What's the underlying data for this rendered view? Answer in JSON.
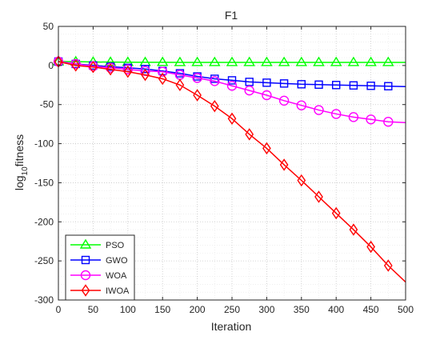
{
  "chart_data": {
    "type": "line",
    "title": "F1",
    "xlabel": "Iteration",
    "ylabel": "fitness",
    "ylabel_prefix": "log",
    "ylabel_subscript": "10",
    "xlim": [
      0,
      500
    ],
    "ylim": [
      -300,
      50
    ],
    "xticks": [
      0,
      50,
      100,
      150,
      200,
      250,
      300,
      350,
      400,
      450,
      500
    ],
    "yticks": [
      50,
      0,
      -50,
      -100,
      -150,
      -200,
      -250,
      -300
    ],
    "grid": true,
    "legend_position": "bottom-left",
    "series": [
      {
        "name": "PSO",
        "color": "#00ff00",
        "marker": "triangle",
        "x": [
          0,
          25,
          50,
          75,
          100,
          125,
          150,
          175,
          200,
          225,
          250,
          275,
          300,
          325,
          350,
          375,
          400,
          425,
          450,
          475,
          500
        ],
        "y": [
          5,
          5,
          4.5,
          4.3,
          4.2,
          4.1,
          4.1,
          4,
          4,
          4,
          4,
          4,
          4,
          4,
          4,
          4,
          4,
          4,
          4,
          4,
          4
        ]
      },
      {
        "name": "GWO",
        "color": "#0000ff",
        "marker": "square",
        "x": [
          0,
          25,
          50,
          75,
          100,
          125,
          150,
          175,
          200,
          225,
          250,
          275,
          300,
          325,
          350,
          375,
          400,
          425,
          450,
          475,
          500
        ],
        "y": [
          5,
          2,
          0,
          -1.5,
          -3,
          -4.5,
          -7,
          -10,
          -14,
          -17,
          -19,
          -21,
          -22,
          -23,
          -24,
          -24.5,
          -25,
          -25.5,
          -26,
          -26.5,
          -27
        ]
      },
      {
        "name": "WOA",
        "color": "#ff00ff",
        "marker": "circle",
        "x": [
          0,
          25,
          50,
          75,
          100,
          125,
          150,
          175,
          200,
          225,
          250,
          275,
          300,
          325,
          350,
          375,
          400,
          425,
          450,
          475,
          500
        ],
        "y": [
          5,
          2,
          -1,
          -3,
          -5,
          -7,
          -8,
          -12,
          -16,
          -20,
          -26,
          -32,
          -38,
          -45,
          -51,
          -57,
          -62,
          -66,
          -69,
          -72,
          -73
        ]
      },
      {
        "name": "IWOA",
        "color": "#ff0000",
        "marker": "diamond",
        "x": [
          0,
          25,
          50,
          75,
          100,
          125,
          150,
          175,
          200,
          225,
          250,
          275,
          300,
          325,
          350,
          375,
          400,
          425,
          450,
          475,
          500
        ],
        "y": [
          5,
          0,
          -2,
          -5,
          -8,
          -12,
          -17,
          -25,
          -38,
          -52,
          -68,
          -88,
          -106,
          -127,
          -147,
          -168,
          -189,
          -210,
          -232,
          -256,
          -277
        ]
      }
    ]
  }
}
